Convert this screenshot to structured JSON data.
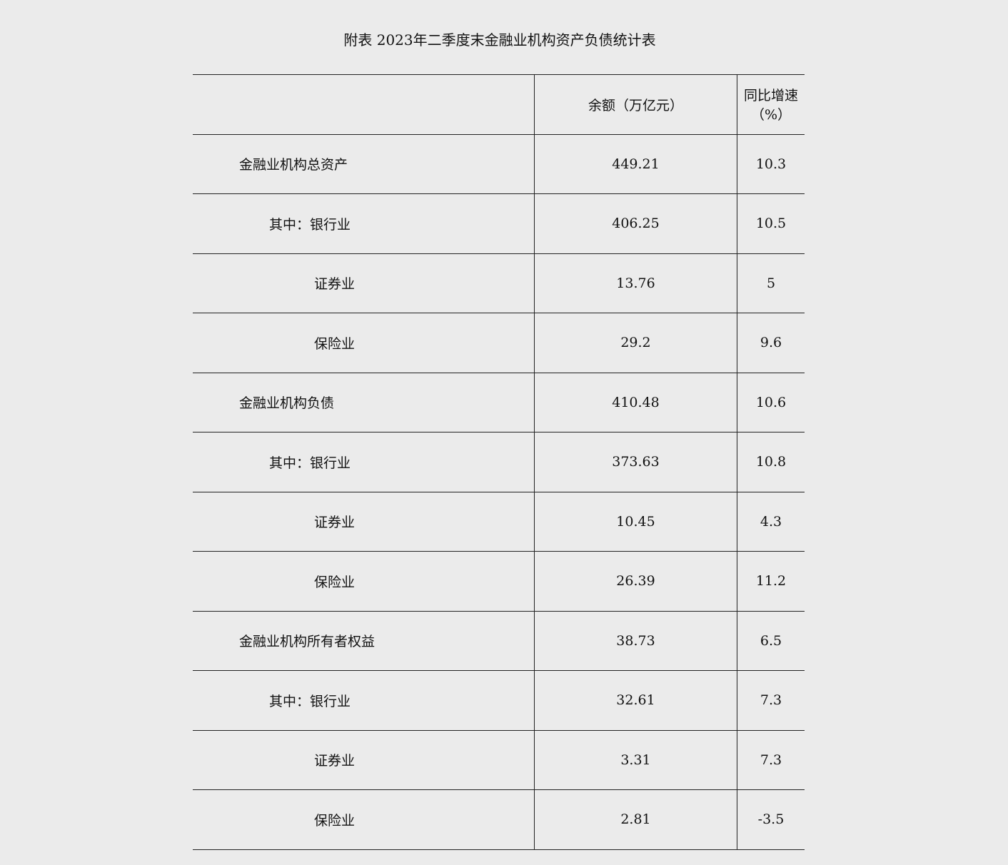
{
  "title": "附表 2023年二季度末金融业机构资产负债统计表",
  "headers": [
    "",
    "余额（万亿元）",
    "同比增速（%）"
  ],
  "rows": [
    {
      "label": "金融业机构总资产",
      "level": 0,
      "balance": "449.21",
      "growth": "10.3"
    },
    {
      "label": "其中：银行业",
      "level": 1,
      "balance": "406.25",
      "growth": "10.5"
    },
    {
      "label": "证券业",
      "level": 2,
      "balance": "13.76",
      "growth": "5"
    },
    {
      "label": "保险业",
      "level": 2,
      "balance": "29.2",
      "growth": "9.6"
    },
    {
      "label": "金融业机构负债",
      "level": 0,
      "balance": "410.48",
      "growth": "10.6"
    },
    {
      "label": "其中：银行业",
      "level": 1,
      "balance": "373.63",
      "growth": "10.8"
    },
    {
      "label": "证券业",
      "level": 2,
      "balance": "10.45",
      "growth": "4.3"
    },
    {
      "label": "保险业",
      "level": 2,
      "balance": "26.39",
      "growth": "11.2"
    },
    {
      "label": "金融业机构所有者权益",
      "level": 0,
      "balance": "38.73",
      "growth": "6.5"
    },
    {
      "label": "其中：银行业",
      "level": 1,
      "balance": "32.61",
      "growth": "7.3"
    },
    {
      "label": "证券业",
      "level": 2,
      "balance": "3.31",
      "growth": "7.3"
    },
    {
      "label": "保险业",
      "level": 2,
      "balance": "2.81",
      "growth": "-3.5"
    }
  ]
}
